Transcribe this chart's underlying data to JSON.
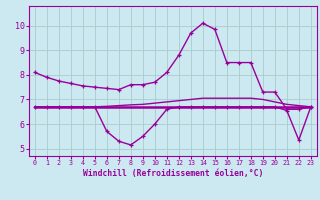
{
  "xlabel": "Windchill (Refroidissement éolien,°C)",
  "bg_color": "#cce8f0",
  "line_color": "#990099",
  "grid_color": "#aacccc",
  "x_values": [
    0,
    1,
    2,
    3,
    4,
    5,
    6,
    7,
    8,
    9,
    10,
    11,
    12,
    13,
    14,
    15,
    16,
    17,
    18,
    19,
    20,
    21,
    22,
    23
  ],
  "line1": [
    8.1,
    7.9,
    7.75,
    7.65,
    7.55,
    7.5,
    7.45,
    7.4,
    7.6,
    7.6,
    7.7,
    8.1,
    8.8,
    9.7,
    10.1,
    9.85,
    8.5,
    8.5,
    8.5,
    7.3,
    7.3,
    6.6,
    6.6,
    6.7
  ],
  "line2": [
    6.7,
    6.7,
    6.7,
    6.7,
    6.7,
    6.7,
    5.7,
    5.3,
    5.15,
    5.5,
    6.0,
    6.6,
    6.7,
    6.7,
    6.7,
    6.7,
    6.7,
    6.7,
    6.7,
    6.7,
    6.7,
    6.55,
    5.35,
    6.7
  ],
  "line3": [
    6.7,
    6.7,
    6.7,
    6.7,
    6.7,
    6.7,
    6.72,
    6.75,
    6.78,
    6.8,
    6.85,
    6.9,
    6.95,
    7.0,
    7.05,
    7.05,
    7.05,
    7.05,
    7.05,
    7.0,
    6.9,
    6.8,
    6.75,
    6.7
  ],
  "line4": [
    6.7,
    6.7,
    6.7,
    6.7,
    6.7,
    6.7,
    6.7,
    6.7,
    6.7,
    6.7,
    6.7,
    6.7,
    6.7,
    6.7,
    6.7,
    6.7,
    6.7,
    6.7,
    6.7,
    6.7,
    6.7,
    6.7,
    6.7,
    6.7
  ],
  "ylim": [
    4.7,
    10.8
  ],
  "yticks": [
    5,
    6,
    7,
    8,
    9,
    10
  ],
  "xlim": [
    -0.5,
    23.5
  ]
}
